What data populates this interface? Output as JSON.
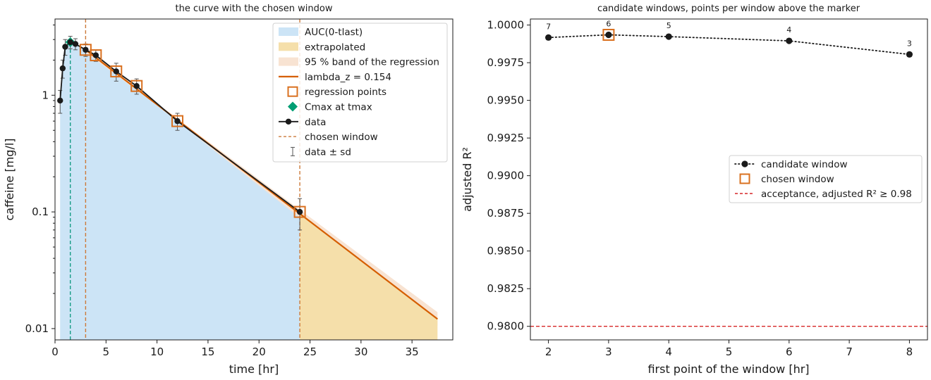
{
  "chart_data": [
    {
      "type": "line",
      "title": "the curve with the chosen window",
      "xlabel": "time [hr]",
      "ylabel": "caffeine [mg/l]",
      "xlim": [
        0,
        39
      ],
      "ylim": [
        0.008,
        4.5
      ],
      "y_scale": "log",
      "x_ticks": [
        0,
        5,
        10,
        15,
        20,
        25,
        30,
        35
      ],
      "x_tick_labels": [
        "0",
        "5",
        "10",
        "15",
        "20",
        "25",
        "30",
        "35"
      ],
      "y_ticks": [
        0.01,
        0.1,
        1
      ],
      "y_tick_labels": [
        "0.01",
        "0.1",
        "1"
      ],
      "grid": false,
      "legend_position": "top-right",
      "legend": [
        {
          "label": "AUC(0-tlast)",
          "kind": "patch",
          "color": "#cce4f6"
        },
        {
          "label": "extrapolated",
          "kind": "patch",
          "color": "#f5dfaa"
        },
        {
          "label": "95 % band of the regression",
          "kind": "patch",
          "color": "#f8e3d2"
        },
        {
          "label": "lambda_z = 0.154",
          "kind": "line",
          "color": "#d55e00"
        },
        {
          "label": "regression points",
          "kind": "square",
          "color": "#d9701f"
        },
        {
          "label": "Cmax at tmax",
          "kind": "diamond",
          "color": "#009e73"
        },
        {
          "label": "data",
          "kind": "line-marker",
          "color": "#1a1a1a"
        },
        {
          "label": "chosen window",
          "kind": "dashed",
          "color": "#cc7a3a"
        },
        {
          "label": "data ± sd",
          "kind": "errorbar",
          "color": "#555555"
        }
      ],
      "series": [
        {
          "name": "data",
          "x": [
            0.5,
            0.75,
            1,
            1.5,
            2,
            3,
            4,
            6,
            8,
            12,
            24
          ],
          "y": [
            0.9,
            1.7,
            2.6,
            2.85,
            2.75,
            2.45,
            2.2,
            1.6,
            1.2,
            0.6,
            0.1
          ],
          "sd": [
            0.2,
            0.3,
            0.4,
            0.35,
            0.3,
            0.3,
            0.25,
            0.28,
            0.18,
            0.1,
            0.03
          ]
        }
      ],
      "regression_points_x": [
        3,
        4,
        6,
        8,
        12,
        24
      ],
      "cmax": {
        "x": 1.5,
        "y": 2.85
      },
      "chosen_window": [
        3,
        24
      ],
      "regression_line": {
        "x_start": 3,
        "x_end": 37.5,
        "y_start": 2.45,
        "lambda_z": 0.154
      },
      "extrapolation_end_x": 37.5
    },
    {
      "type": "scatter",
      "title": "candidate windows, points per window above the marker",
      "xlabel": "first point of the window [hr]",
      "ylabel": "adjusted R²",
      "xlim": [
        1.7,
        8.3
      ],
      "ylim": [
        0.9791,
        1.0004
      ],
      "x_ticks": [
        2,
        3,
        4,
        5,
        6,
        7,
        8
      ],
      "x_tick_labels": [
        "2",
        "3",
        "4",
        "5",
        "6",
        "7",
        "8"
      ],
      "y_ticks": [
        0.98,
        0.9825,
        0.985,
        0.9875,
        0.99,
        0.9925,
        0.995,
        0.9975,
        1.0
      ],
      "y_tick_labels": [
        "0.9800",
        "0.9825",
        "0.9850",
        "0.9875",
        "0.9900",
        "0.9925",
        "0.9950",
        "0.9975",
        "1.0000"
      ],
      "grid": false,
      "legend_position": "center-right",
      "legend": [
        {
          "label": "candidate window",
          "kind": "dotted-marker",
          "color": "#1a1a1a"
        },
        {
          "label": "chosen window",
          "kind": "square",
          "color": "#d9701f"
        },
        {
          "label": "acceptance, adjusted R² ≥ 0.98",
          "kind": "dashed",
          "color": "#d62728"
        }
      ],
      "series": [
        {
          "name": "candidate window",
          "x": [
            2,
            3,
            4,
            6,
            8
          ],
          "y": [
            0.99917,
            0.99935,
            0.99923,
            0.99895,
            0.99805
          ],
          "points_per_window": [
            "7",
            "6",
            "5",
            "4",
            "3"
          ]
        }
      ],
      "chosen_x": 3,
      "acceptance_line": 0.98
    }
  ]
}
